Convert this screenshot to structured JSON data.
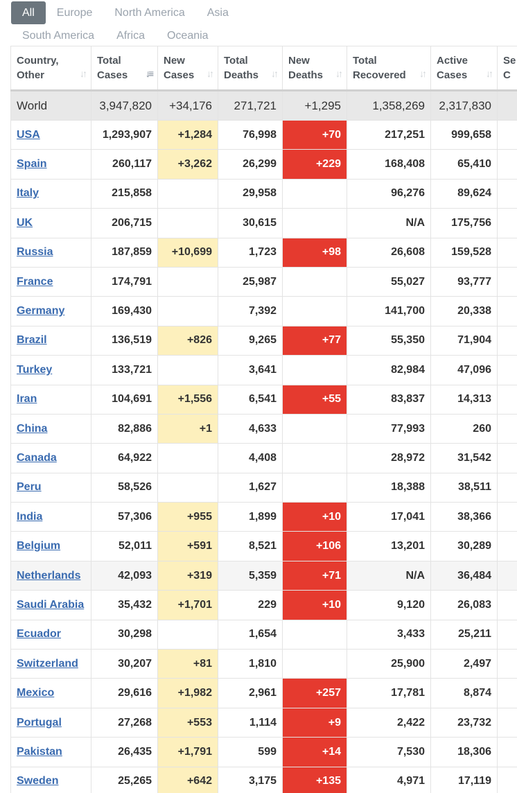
{
  "tabs": [
    "All",
    "Europe",
    "North America",
    "Asia",
    "South America",
    "Africa",
    "Oceania"
  ],
  "active_tab": "All",
  "columns": [
    {
      "key": "country",
      "label": "Country, Other",
      "l1": "Country,",
      "l2": "Other"
    },
    {
      "key": "total_cases",
      "label": "Total Cases",
      "l1": "Total",
      "l2": "Cases"
    },
    {
      "key": "new_cases",
      "label": "New Cases",
      "l1": "New",
      "l2": "Cases"
    },
    {
      "key": "total_deaths",
      "label": "Total Deaths",
      "l1": "Total",
      "l2": "Deaths"
    },
    {
      "key": "new_deaths",
      "label": "New Deaths",
      "l1": "New",
      "l2": "Deaths"
    },
    {
      "key": "total_recovered",
      "label": "Total Recovered",
      "l1": "Total",
      "l2": "Recovered"
    },
    {
      "key": "active_cases",
      "label": "Active Cases",
      "l1": "Active",
      "l2": "Cases"
    },
    {
      "key": "serious",
      "label": "Se C",
      "l1": "Se",
      "l2": "C"
    }
  ],
  "world": {
    "country": "World",
    "total_cases": "3,947,820",
    "new_cases": "+34,176",
    "total_deaths": "271,721",
    "new_deaths": "+1,295",
    "total_recovered": "1,358,269",
    "active_cases": "2,317,830"
  },
  "rows": [
    {
      "country": "USA",
      "total_cases": "1,293,907",
      "new_cases": "+1,284",
      "total_deaths": "76,998",
      "new_deaths": "+70",
      "total_recovered": "217,251",
      "active_cases": "999,658"
    },
    {
      "country": "Spain",
      "total_cases": "260,117",
      "new_cases": "+3,262",
      "total_deaths": "26,299",
      "new_deaths": "+229",
      "total_recovered": "168,408",
      "active_cases": "65,410"
    },
    {
      "country": "Italy",
      "total_cases": "215,858",
      "new_cases": "",
      "total_deaths": "29,958",
      "new_deaths": "",
      "total_recovered": "96,276",
      "active_cases": "89,624"
    },
    {
      "country": "UK",
      "total_cases": "206,715",
      "new_cases": "",
      "total_deaths": "30,615",
      "new_deaths": "",
      "total_recovered": "N/A",
      "active_cases": "175,756"
    },
    {
      "country": "Russia",
      "total_cases": "187,859",
      "new_cases": "+10,699",
      "total_deaths": "1,723",
      "new_deaths": "+98",
      "total_recovered": "26,608",
      "active_cases": "159,528"
    },
    {
      "country": "France",
      "total_cases": "174,791",
      "new_cases": "",
      "total_deaths": "25,987",
      "new_deaths": "",
      "total_recovered": "55,027",
      "active_cases": "93,777"
    },
    {
      "country": "Germany",
      "total_cases": "169,430",
      "new_cases": "",
      "total_deaths": "7,392",
      "new_deaths": "",
      "total_recovered": "141,700",
      "active_cases": "20,338"
    },
    {
      "country": "Brazil",
      "total_cases": "136,519",
      "new_cases": "+826",
      "total_deaths": "9,265",
      "new_deaths": "+77",
      "total_recovered": "55,350",
      "active_cases": "71,904"
    },
    {
      "country": "Turkey",
      "total_cases": "133,721",
      "new_cases": "",
      "total_deaths": "3,641",
      "new_deaths": "",
      "total_recovered": "82,984",
      "active_cases": "47,096"
    },
    {
      "country": "Iran",
      "total_cases": "104,691",
      "new_cases": "+1,556",
      "total_deaths": "6,541",
      "new_deaths": "+55",
      "total_recovered": "83,837",
      "active_cases": "14,313"
    },
    {
      "country": "China",
      "total_cases": "82,886",
      "new_cases": "+1",
      "total_deaths": "4,633",
      "new_deaths": "",
      "total_recovered": "77,993",
      "active_cases": "260"
    },
    {
      "country": "Canada",
      "total_cases": "64,922",
      "new_cases": "",
      "total_deaths": "4,408",
      "new_deaths": "",
      "total_recovered": "28,972",
      "active_cases": "31,542"
    },
    {
      "country": "Peru",
      "total_cases": "58,526",
      "new_cases": "",
      "total_deaths": "1,627",
      "new_deaths": "",
      "total_recovered": "18,388",
      "active_cases": "38,511"
    },
    {
      "country": "India",
      "total_cases": "57,306",
      "new_cases": "+955",
      "total_deaths": "1,899",
      "new_deaths": "+10",
      "total_recovered": "17,041",
      "active_cases": "38,366"
    },
    {
      "country": "Belgium",
      "total_cases": "52,011",
      "new_cases": "+591",
      "total_deaths": "8,521",
      "new_deaths": "+106",
      "total_recovered": "13,201",
      "active_cases": "30,289"
    },
    {
      "country": "Netherlands",
      "total_cases": "42,093",
      "new_cases": "+319",
      "total_deaths": "5,359",
      "new_deaths": "+71",
      "total_recovered": "N/A",
      "active_cases": "36,484",
      "alt": true
    },
    {
      "country": "Saudi Arabia",
      "total_cases": "35,432",
      "new_cases": "+1,701",
      "total_deaths": "229",
      "new_deaths": "+10",
      "total_recovered": "9,120",
      "active_cases": "26,083"
    },
    {
      "country": "Ecuador",
      "total_cases": "30,298",
      "new_cases": "",
      "total_deaths": "1,654",
      "new_deaths": "",
      "total_recovered": "3,433",
      "active_cases": "25,211"
    },
    {
      "country": "Switzerland",
      "total_cases": "30,207",
      "new_cases": "+81",
      "total_deaths": "1,810",
      "new_deaths": "",
      "total_recovered": "25,900",
      "active_cases": "2,497"
    },
    {
      "country": "Mexico",
      "total_cases": "29,616",
      "new_cases": "+1,982",
      "total_deaths": "2,961",
      "new_deaths": "+257",
      "total_recovered": "17,781",
      "active_cases": "8,874"
    },
    {
      "country": "Portugal",
      "total_cases": "27,268",
      "new_cases": "+553",
      "total_deaths": "1,114",
      "new_deaths": "+9",
      "total_recovered": "2,422",
      "active_cases": "23,732"
    },
    {
      "country": "Pakistan",
      "total_cases": "26,435",
      "new_cases": "+1,791",
      "total_deaths": "599",
      "new_deaths": "+14",
      "total_recovered": "7,530",
      "active_cases": "18,306"
    },
    {
      "country": "Sweden",
      "total_cases": "25,265",
      "new_cases": "+642",
      "total_deaths": "3,175",
      "new_deaths": "+135",
      "total_recovered": "4,971",
      "active_cases": "17,119"
    }
  ],
  "icons": {
    "sort": "sort-icon",
    "sort_active": "sort-desc-icon"
  },
  "colors": {
    "new_cases_bg": "#fdf0bd",
    "new_deaths_bg": "#e53a2f",
    "link": "#3a6bb0",
    "tab_active": "#6b757d"
  }
}
